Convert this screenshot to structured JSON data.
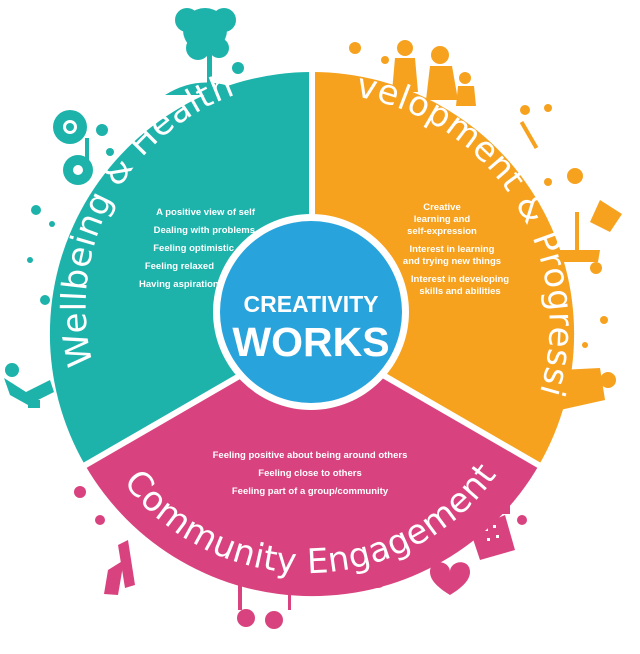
{
  "center": {
    "line1": "CREATIVITY",
    "line2": "WORKS"
  },
  "segments": {
    "wellbeing": {
      "title": "Wellbeing & Health",
      "color": "#1db3ab",
      "items": [
        "A positive view of self",
        "Dealing with problems",
        "Feeling optimistic",
        "Feeling relaxed",
        "Having aspirations"
      ]
    },
    "development": {
      "title": "Development & Progression",
      "color": "#f6a21f",
      "items": [
        "Creative",
        "learning and",
        "self-expression",
        "Interest in learning",
        "and trying new things",
        "Interest in developing",
        "skills and abilities"
      ]
    },
    "community": {
      "title": "Community Engagement",
      "color": "#d8437f",
      "items": [
        "Feeling positive about being around others",
        "Feeling close to others",
        "Feeling part of a group/community"
      ]
    }
  },
  "colors": {
    "center_fill": "#29a3dc",
    "center_ring": "#ffffff",
    "divider": "#ffffff"
  },
  "decorations": {
    "top_icon": "tree-icon",
    "left_icons": [
      "sunflower-icon",
      "flower-icon",
      "person-stretch-icon"
    ],
    "right_icons": [
      "family-silhouette-icon",
      "lamp-icon",
      "paint-brush-icon"
    ],
    "bottom_icons": [
      "climber-icon",
      "bicycle-icon",
      "buildings-icon",
      "heart-icon"
    ]
  }
}
